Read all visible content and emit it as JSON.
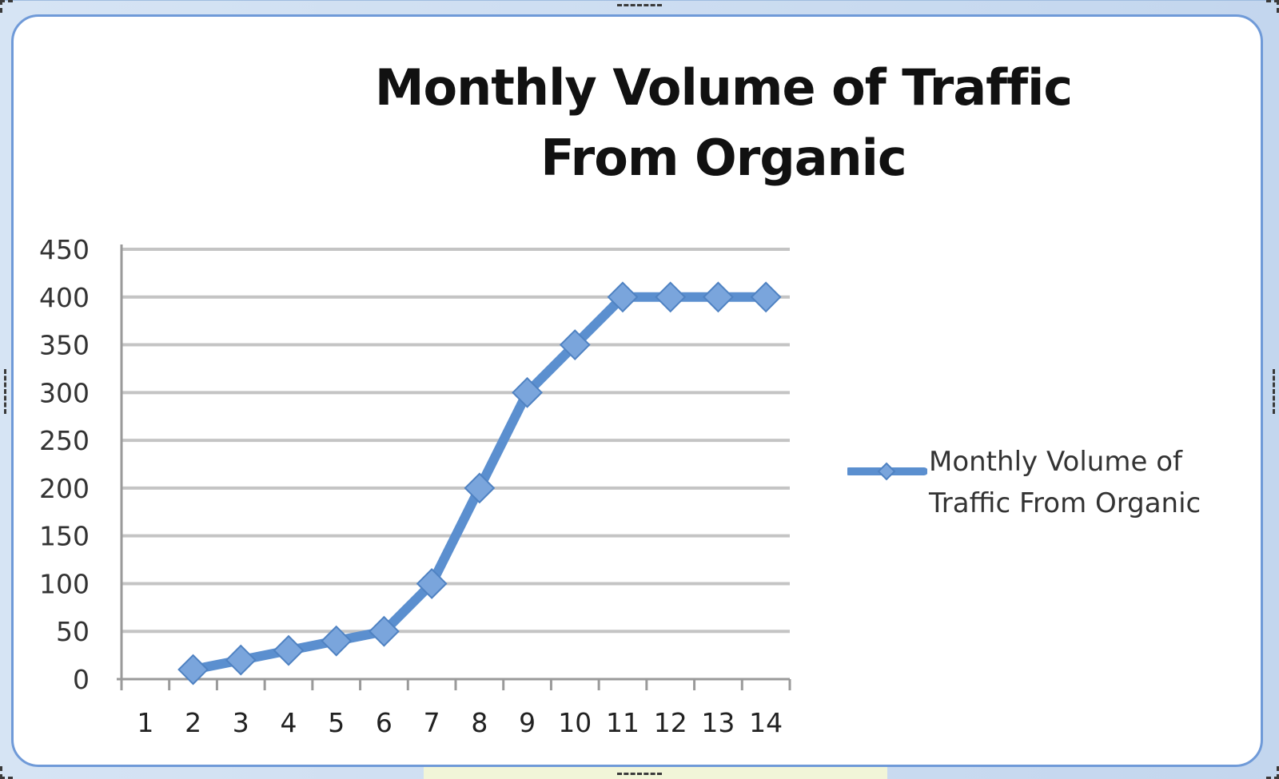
{
  "chart_data": {
    "type": "line",
    "title": "Monthly Volume of Traffic From Organic",
    "xlabel": "",
    "ylabel": "",
    "categories": [
      "1",
      "2",
      "3",
      "4",
      "5",
      "6",
      "7",
      "8",
      "9",
      "10",
      "11",
      "12",
      "13",
      "14"
    ],
    "ylim": [
      0,
      450
    ],
    "yticks": [
      "0",
      "50",
      "100",
      "150",
      "200",
      "250",
      "300",
      "350",
      "400",
      "450"
    ],
    "grid": true,
    "legend_position": "right",
    "series": [
      {
        "name": "Monthly Volume of Traffic From Organic",
        "values": [
          null,
          10,
          20,
          30,
          40,
          50,
          100,
          200,
          300,
          350,
          400,
          400,
          400,
          400
        ],
        "color": "#5b8fcf",
        "marker": "diamond"
      }
    ]
  },
  "legend": {
    "label": "Monthly Volume of Traffic From Organic"
  }
}
